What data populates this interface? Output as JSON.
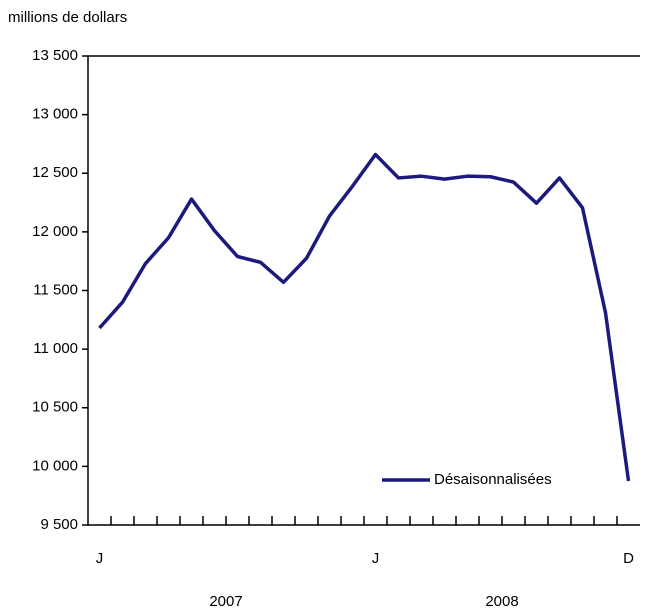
{
  "chart_data": {
    "type": "line",
    "y_label": "millions de dollars",
    "categories": [
      "J",
      null,
      null,
      null,
      null,
      null,
      null,
      null,
      null,
      null,
      null,
      null,
      "J",
      null,
      null,
      null,
      null,
      null,
      null,
      null,
      null,
      null,
      null,
      "D"
    ],
    "year_labels": [
      "2007",
      "2008"
    ],
    "series": [
      {
        "name": "Désaisonnalisées",
        "color": "#1c1a7c",
        "values": [
          11180,
          11400,
          11730,
          11950,
          12280,
          12010,
          11790,
          11740,
          11570,
          11775,
          12135,
          12390,
          12660,
          12460,
          12475,
          12450,
          12475,
          12470,
          12425,
          12245,
          12460,
          12205,
          11310,
          9875
        ]
      }
    ],
    "ylim": [
      9500,
      13500
    ],
    "yticks": [
      {
        "value": 9500,
        "label": "9 500"
      },
      {
        "value": 10000,
        "label": "10 000"
      },
      {
        "value": 10500,
        "label": "10 500"
      },
      {
        "value": 11000,
        "label": "11 000"
      },
      {
        "value": 11500,
        "label": "11 500"
      },
      {
        "value": 12000,
        "label": "12 000"
      },
      {
        "value": 12500,
        "label": "12 500"
      },
      {
        "value": 13000,
        "label": "13 000"
      },
      {
        "value": 13500,
        "label": "13 500"
      }
    ],
    "grid": false,
    "legend": "lower right"
  }
}
